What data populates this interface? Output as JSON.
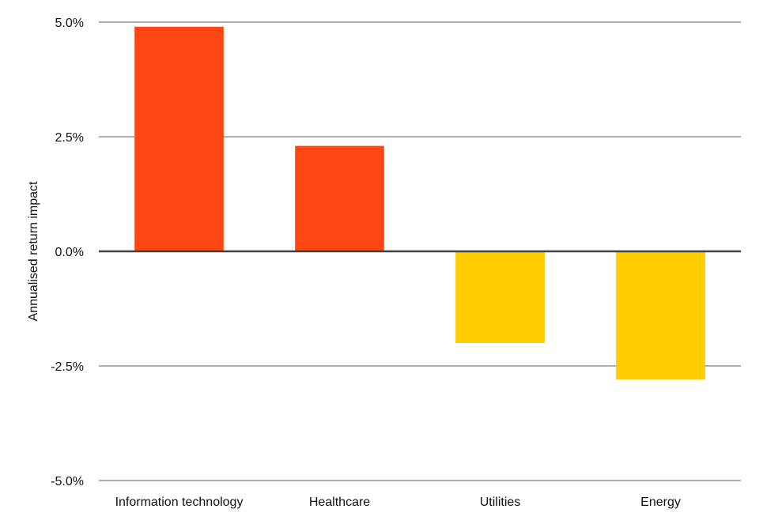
{
  "chart_data": {
    "type": "bar",
    "title": "",
    "xlabel": "",
    "ylabel": "Annualised return impact",
    "categories": [
      "Information technology",
      "Healthcare",
      "Utilities",
      "Energy"
    ],
    "values": [
      4.9,
      2.3,
      -2.0,
      -2.8
    ],
    "unit": "%",
    "ylim": [
      -5.0,
      5.0
    ],
    "yticks": [
      5.0,
      2.5,
      0.0,
      -2.5,
      -5.0
    ],
    "ytick_labels": [
      "5.0%",
      "2.5%",
      "0.0%",
      "-2.5%",
      "-5.0%"
    ],
    "grid": true,
    "legend": "none",
    "colors": {
      "positive": "#ff4713",
      "negative": "#ffcd00",
      "grid": "#7f7f7f",
      "zero_line": "#404040"
    }
  }
}
